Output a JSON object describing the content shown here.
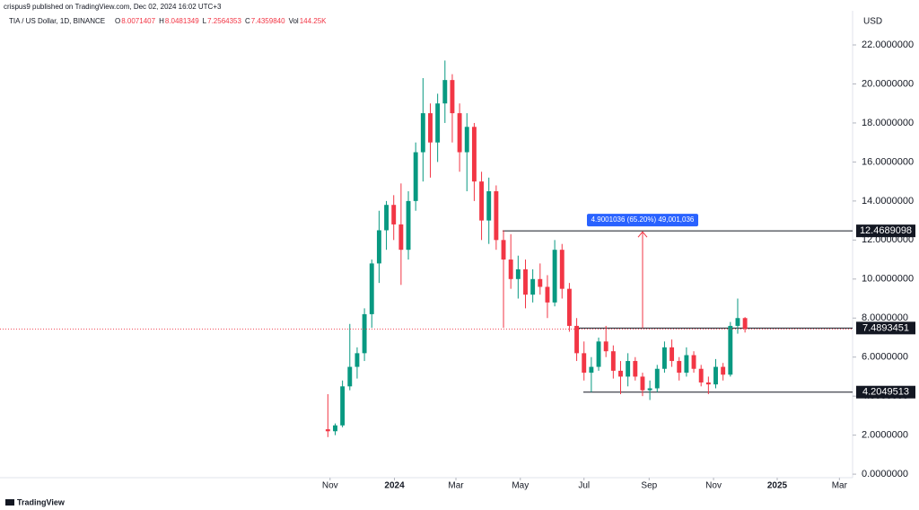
{
  "header": {
    "publisher": "crispus9 published on TradingView.com, Dec 02, 2024 16:02 UTC+3",
    "footer": "TradingView"
  },
  "chart_data": {
    "type": "candlestick",
    "symbol": "TIA / US Dollar, 1D, BINANCE",
    "ohlc_header": [
      {
        "label": "O",
        "value": "8.0071407"
      },
      {
        "label": "H",
        "value": "8.0481349"
      },
      {
        "label": "L",
        "value": "7.2564353"
      },
      {
        "label": "C",
        "value": "7.4359840"
      },
      {
        "label": "Vol",
        "value": "144.25K"
      }
    ],
    "currency": "USD",
    "up_color": "#089981",
    "down_color": "#f23645",
    "open": [
      2.3,
      2.2,
      2.5,
      4.5,
      5.5,
      6.2,
      8.2,
      10.8,
      12.5,
      13.8,
      12.8,
      11.5,
      14.0,
      16.5,
      18.5,
      17.0,
      19.0,
      20.2,
      18.5,
      16.5,
      17.8,
      15.0,
      13.0,
      14.5,
      12.0,
      11.0,
      10.0,
      10.5,
      9.2,
      10.0,
      9.6,
      8.8,
      11.5,
      9.5,
      7.6,
      6.2,
      5.2,
      5.5,
      6.8,
      6.3,
      5.3,
      5.0,
      5.8,
      5.0,
      4.3,
      4.4,
      5.4,
      6.5,
      5.8,
      5.2,
      6.1,
      5.4,
      4.7,
      4.6,
      5.5,
      5.1,
      7.6,
      8.0
    ],
    "high": [
      4.1,
      2.6,
      4.8,
      7.7,
      6.5,
      8.5,
      11.0,
      13.5,
      14.0,
      14.3,
      14.9,
      14.5,
      17.0,
      20.3,
      19.0,
      19.5,
      21.2,
      20.5,
      19.0,
      18.5,
      18.0,
      15.5,
      15.2,
      14.8,
      12.5,
      12.3,
      11.2,
      11.0,
      10.5,
      10.8,
      10.2,
      12.0,
      11.8,
      9.8,
      8.0,
      6.8,
      6.0,
      7.0,
      7.6,
      6.6,
      5.8,
      6.2,
      6.0,
      5.2,
      4.8,
      5.6,
      6.8,
      6.9,
      6.0,
      6.5,
      6.3,
      5.6,
      5.0,
      5.9,
      5.7,
      7.8,
      9.0,
      8.05
    ],
    "low": [
      1.9,
      2.0,
      2.4,
      4.3,
      4.9,
      5.8,
      7.5,
      9.8,
      11.5,
      12.0,
      9.7,
      11.0,
      13.5,
      15.0,
      15.2,
      16.0,
      18.0,
      17.0,
      15.5,
      14.5,
      14.0,
      12.0,
      11.8,
      11.5,
      7.5,
      9.5,
      9.0,
      8.5,
      8.8,
      9.2,
      8.0,
      8.6,
      9.0,
      7.3,
      5.8,
      4.8,
      4.2,
      5.3,
      6.0,
      4.9,
      4.1,
      4.5,
      4.8,
      4.0,
      3.8,
      4.2,
      5.2,
      5.5,
      4.8,
      5.0,
      5.2,
      4.5,
      4.1,
      4.4,
      4.8,
      5.0,
      7.2,
      7.26
    ],
    "close": [
      2.2,
      2.5,
      4.5,
      5.5,
      6.2,
      8.2,
      10.8,
      12.5,
      13.8,
      12.8,
      11.5,
      14.0,
      16.5,
      18.5,
      17.0,
      19.0,
      20.2,
      18.5,
      16.5,
      17.8,
      15.0,
      13.0,
      14.5,
      12.0,
      11.0,
      10.0,
      10.5,
      9.2,
      10.0,
      9.6,
      8.8,
      11.5,
      9.5,
      7.6,
      6.2,
      5.2,
      5.5,
      6.8,
      6.3,
      5.3,
      5.0,
      5.8,
      5.0,
      4.3,
      4.4,
      5.4,
      6.5,
      5.8,
      5.2,
      6.1,
      5.4,
      4.7,
      4.6,
      5.5,
      5.1,
      7.6,
      8.0,
      7.44
    ],
    "xlim": [
      -44.8,
      71.7
    ],
    "xticks": [
      {
        "value": 0.3,
        "label": "Nov"
      },
      {
        "value": 9.1,
        "label": "2024"
      },
      {
        "value": 17.5,
        "label": "Mar"
      },
      {
        "value": 26.3,
        "label": "May"
      },
      {
        "value": 35,
        "label": "Jul"
      },
      {
        "value": 43.9,
        "label": "Sep"
      },
      {
        "value": 52.7,
        "label": "Nov"
      },
      {
        "value": 61.4,
        "label": "2025"
      },
      {
        "value": 69.9,
        "label": "Mar"
      }
    ],
    "ylim": [
      -0.18,
      23.75
    ],
    "yticks": [
      {
        "value": 0,
        "label": "0.0000000"
      },
      {
        "value": 2,
        "label": "2.0000000"
      },
      {
        "value": 4,
        "label": "4.0000000"
      },
      {
        "value": 6,
        "label": "6.0000000"
      },
      {
        "value": 8,
        "label": "8.0000000"
      },
      {
        "value": 10,
        "label": "10.0000000"
      },
      {
        "value": 12,
        "label": "12.0000000"
      },
      {
        "value": 14,
        "label": "14.0000000"
      },
      {
        "value": 16,
        "label": "16.0000000"
      },
      {
        "value": 18,
        "label": "18.0000000"
      },
      {
        "value": 20,
        "label": "20.0000000"
      },
      {
        "value": 22,
        "label": "22.0000000"
      }
    ],
    "grid": false,
    "levels": [
      {
        "value": 12.4689098,
        "label": "12.4689098"
      },
      {
        "value": 7.4893451,
        "label": "7.4893451"
      },
      {
        "value": 4.2049513,
        "label": "4.2049513"
      }
    ],
    "measure": "4.9001036 (65.20%) 49,001,036"
  }
}
